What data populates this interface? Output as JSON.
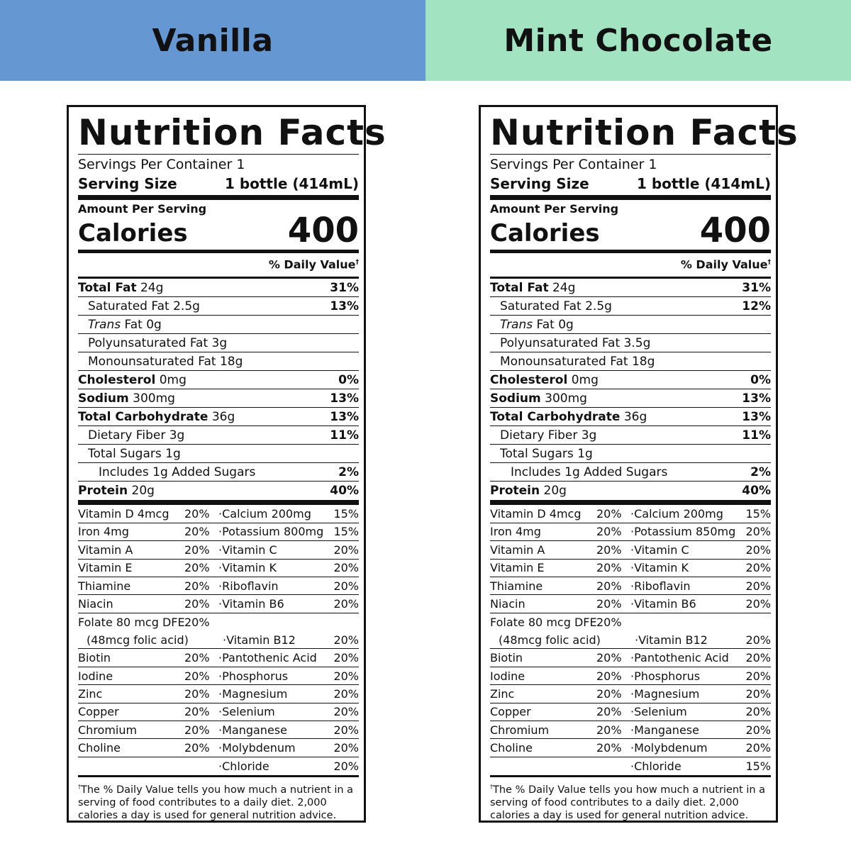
{
  "headers": {
    "left": "Vanilla",
    "right": "Mint Chocolate"
  },
  "labels": [
    {
      "title": "Nutrition Facts",
      "servings_per_container": "Servings Per Container 1",
      "serving_size_label": "Serving Size",
      "serving_size_value": "1 bottle (414mL)",
      "amount_per_serving": "Amount Per Serving",
      "calories_label": "Calories",
      "calories_value": "400",
      "dv_header": "% Daily Value",
      "dv_mark": "†",
      "nutrients": [
        {
          "name": "Total Fat",
          "amount": "24g",
          "pct": "31%"
        },
        {
          "name": "Saturated Fat",
          "amount": "2.5g",
          "pct": "13%"
        },
        {
          "name": "Trans",
          "amount": "Fat 0g",
          "pct": ""
        },
        {
          "name": "Polyunsaturated Fat",
          "amount": "3g",
          "pct": ""
        },
        {
          "name": "Monounsaturated Fat",
          "amount": "18g",
          "pct": ""
        },
        {
          "name": "Cholesterol",
          "amount": "0mg",
          "pct": "0%"
        },
        {
          "name": "Sodium",
          "amount": "300mg",
          "pct": "13%"
        },
        {
          "name": "Total Carbohydrate",
          "amount": "36g",
          "pct": "13%"
        },
        {
          "name": "Dietary Fiber",
          "amount": "3g",
          "pct": "11%"
        },
        {
          "name": "Total Sugars",
          "amount": "1g",
          "pct": ""
        },
        {
          "name": "Includes 1g Added Sugars",
          "amount": "",
          "pct": "2%"
        },
        {
          "name": "Protein",
          "amount": "20g",
          "pct": "40%"
        }
      ],
      "vitamins": [
        [
          "Vitamin D 4mcg",
          "20%",
          "·Calcium 200mg",
          "15%"
        ],
        [
          "Iron 4mg",
          "20%",
          "·Potassium 800mg",
          "15%"
        ],
        [
          "Vitamin A",
          "20%",
          "·Vitamin C",
          "20%"
        ],
        [
          "Vitamin E",
          "20%",
          "·Vitamin K",
          "20%"
        ],
        [
          "Thiamine",
          "20%",
          "·Riboflavin",
          "20%"
        ],
        [
          "Niacin",
          "20%",
          "·Vitamin B6",
          "20%"
        ],
        [
          "Folate 80 mcg DFE",
          "20%",
          "",
          ""
        ],
        [
          "(48mcg folic acid)",
          "",
          "·Vitamin B12",
          "20%"
        ],
        [
          "Biotin",
          "20%",
          "·Pantothenic Acid",
          "20%"
        ],
        [
          "Iodine",
          "20%",
          "·Phosphorus",
          "20%"
        ],
        [
          "Zinc",
          "20%",
          "·Magnesium",
          "20%"
        ],
        [
          "Copper",
          "20%",
          "·Selenium",
          "20%"
        ],
        [
          "Chromium",
          "20%",
          "·Manganese",
          "20%"
        ],
        [
          "Choline",
          "20%",
          "·Molybdenum",
          "20%"
        ],
        [
          "",
          "",
          "·Chloride",
          "20%"
        ]
      ],
      "footnote_mark": "†",
      "footnote": "The % Daily Value tells you how much a nutrient in a serving of food contributes to a daily diet. 2,000 calories a day is used for general nutrition advice."
    },
    {
      "title": "Nutrition Facts",
      "servings_per_container": "Servings Per Container 1",
      "serving_size_label": "Serving Size",
      "serving_size_value": "1 bottle (414mL)",
      "amount_per_serving": "Amount Per Serving",
      "calories_label": "Calories",
      "calories_value": "400",
      "dv_header": "% Daily Value",
      "dv_mark": "†",
      "nutrients": [
        {
          "name": "Total Fat",
          "amount": "24g",
          "pct": "31%"
        },
        {
          "name": "Saturated Fat",
          "amount": "2.5g",
          "pct": "12%"
        },
        {
          "name": "Trans",
          "amount": "Fat 0g",
          "pct": ""
        },
        {
          "name": "Polyunsaturated Fat",
          "amount": "3.5g",
          "pct": ""
        },
        {
          "name": "Monounsaturated Fat",
          "amount": "18g",
          "pct": ""
        },
        {
          "name": "Cholesterol",
          "amount": "0mg",
          "pct": "0%"
        },
        {
          "name": "Sodium",
          "amount": "300mg",
          "pct": "13%"
        },
        {
          "name": "Total Carbohydrate",
          "amount": "36g",
          "pct": "13%"
        },
        {
          "name": "Dietary Fiber",
          "amount": "3g",
          "pct": "11%"
        },
        {
          "name": "Total Sugars",
          "amount": "1g",
          "pct": ""
        },
        {
          "name": "Includes 1g Added Sugars",
          "amount": "",
          "pct": "2%"
        },
        {
          "name": "Protein",
          "amount": "20g",
          "pct": "40%"
        }
      ],
      "vitamins": [
        [
          "Vitamin D 4mcg",
          "20%",
          "·Calcium 200mg",
          "15%"
        ],
        [
          "Iron 4mg",
          "20%",
          "·Potassium 850mg",
          "20%"
        ],
        [
          "Vitamin A",
          "20%",
          "·Vitamin C",
          "20%"
        ],
        [
          "Vitamin E",
          "20%",
          "·Vitamin K",
          "20%"
        ],
        [
          "Thiamine",
          "20%",
          "·Riboflavin",
          "20%"
        ],
        [
          "Niacin",
          "20%",
          "·Vitamin B6",
          "20%"
        ],
        [
          "Folate 80 mcg DFE",
          "20%",
          "",
          ""
        ],
        [
          "(48mcg folic acid)",
          "",
          "·Vitamin B12",
          "20%"
        ],
        [
          "Biotin",
          "20%",
          "·Pantothenic Acid",
          "20%"
        ],
        [
          "Iodine",
          "20%",
          "·Phosphorus",
          "20%"
        ],
        [
          "Zinc",
          "20%",
          "·Magnesium",
          "20%"
        ],
        [
          "Copper",
          "20%",
          "·Selenium",
          "20%"
        ],
        [
          "Chromium",
          "20%",
          "·Manganese",
          "20%"
        ],
        [
          "Choline",
          "20%",
          "·Molybdenum",
          "20%"
        ],
        [
          "",
          "",
          "·Chloride",
          "15%"
        ]
      ],
      "footnote_mark": "†",
      "footnote": "The % Daily Value tells you how much a nutrient in a serving of food contributes to a daily diet. 2,000 calories a day is used for general nutrition advice."
    }
  ]
}
